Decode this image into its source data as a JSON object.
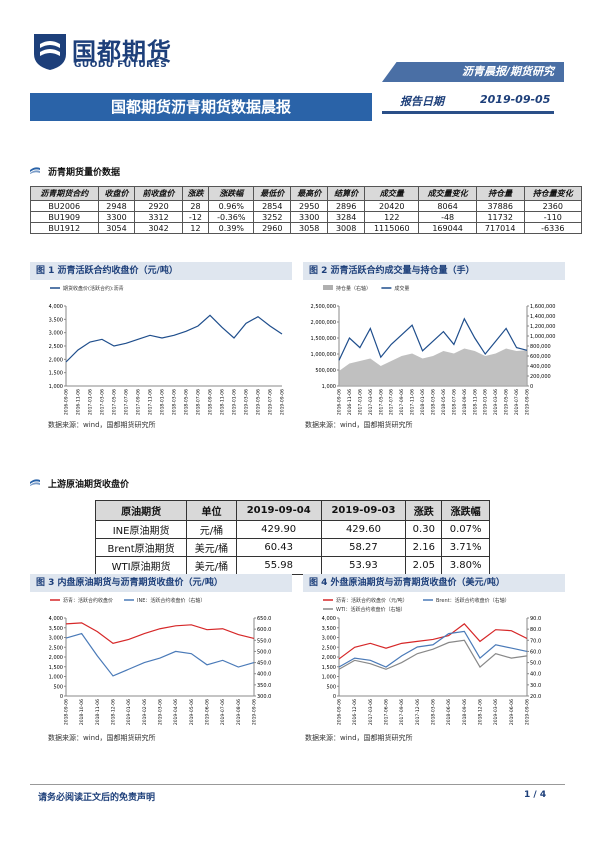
{
  "header": {
    "logo_cn": "国都期货",
    "logo_en": "GUODU FUTURES",
    "tag": "沥青晨报/期货研究",
    "title": "国都期货沥青期货数据晨报",
    "date_label": "报告日期",
    "date": "2019-09-05"
  },
  "section1": "沥青期货量价数据",
  "table1": {
    "columns": [
      "沥青期货合约",
      "收盘价",
      "前收盘价",
      "涨跌",
      "涨跌幅",
      "最低价",
      "最高价",
      "结算价",
      "成交量",
      "成交量变化",
      "持仓量",
      "持仓量变化"
    ],
    "rows": [
      [
        "BU2006",
        "2948",
        "2920",
        "28",
        "0.96%",
        "2854",
        "2950",
        "2896",
        "20420",
        "8064",
        "37886",
        "2360"
      ],
      [
        "BU1909",
        "3300",
        "3312",
        "-12",
        "-0.36%",
        "3252",
        "3300",
        "3284",
        "122",
        "-48",
        "11732",
        "-110"
      ],
      [
        "BU1912",
        "3054",
        "3042",
        "12",
        "0.39%",
        "2960",
        "3058",
        "3008",
        "1115060",
        "169044",
        "717014",
        "-6336"
      ]
    ]
  },
  "figures": [
    {
      "title": "图 1 沥青活跃合约收盘价（元/吨）",
      "source": "数据来源：wind，国都期货研究所",
      "chart": {
        "type": "line",
        "categories": [
          "2016-09-06",
          "2016-11-06",
          "2017-01-06",
          "2017-03-06",
          "2017-05-06",
          "2017-07-06",
          "2017-09-06",
          "2017-11-06",
          "2018-01-06",
          "2018-03-06",
          "2018-05-06",
          "2018-07-06",
          "2018-09-06",
          "2018-11-06",
          "2019-01-06",
          "2019-03-06",
          "2019-05-06",
          "2019-07-06",
          "2019-09-06"
        ],
        "series": [
          {
            "name": "期货收盘价(活跃合约):沥青",
            "color": "#1f4e8c",
            "values": [
              1900,
              2350,
              2650,
              2750,
              2500,
              2600,
              2750,
              2900,
              2800,
              2900,
              3050,
              3250,
              3650,
              3200,
              2800,
              3350,
              3600,
              3250,
              2950
            ]
          }
        ],
        "ylim": [
          1000,
          4000
        ],
        "yticks": [
          {
            "value": 1000,
            "label": "1,000"
          },
          {
            "value": 1500,
            "label": "1,500"
          },
          {
            "value": 2000,
            "label": "2,000"
          },
          {
            "value": 2500,
            "label": "2,500"
          },
          {
            "value": 3000,
            "label": "3,000"
          },
          {
            "value": 3500,
            "label": "3,500"
          },
          {
            "value": 4000,
            "label": "4,000"
          }
        ]
      }
    },
    {
      "title": "图 2 沥青活跃合约成交量与持仓量（手）",
      "source": "数据来源：wind，国都期货研究所",
      "chart": {
        "type": "line",
        "categories": [
          "2016-09-06",
          "2016-11-06",
          "2017-01-06",
          "2017-03-06",
          "2017-05-06",
          "2017-07-06",
          "2017-09-06",
          "2017-11-06",
          "2018-01-06",
          "2018-03-06",
          "2018-05-06",
          "2018-07-06",
          "2018-09-06",
          "2018-11-06",
          "2019-01-06",
          "2019-03-06",
          "2019-05-06",
          "2019-07-06",
          "2019-09-06"
        ],
        "series": [
          {
            "name": "持仓量（右轴）",
            "color": "#b0b0b0",
            "style": "area",
            "axis": "y2",
            "values": [
              300000,
              450000,
              500000,
              550000,
              400000,
              500000,
              600000,
              650000,
              550000,
              600000,
              700000,
              650000,
              750000,
              700000,
              600000,
              650000,
              750000,
              700000,
              717014
            ]
          },
          {
            "name": "成交量",
            "color": "#1f4e8c",
            "values": [
              800000,
              1500000,
              1200000,
              1800000,
              900000,
              1300000,
              1600000,
              1900000,
              1100000,
              1400000,
              1700000,
              1300000,
              2100000,
              1500000,
              1000000,
              1400000,
              1800000,
              1200000,
              1115060
            ]
          }
        ],
        "ylim": [
          1000,
          2500000
        ],
        "yticks": [
          {
            "value": 1000,
            "label": "1,000"
          },
          {
            "value": 500000,
            "label": "500,000"
          },
          {
            "value": 1000000,
            "label": "1,000,000"
          },
          {
            "value": 1500000,
            "label": "1,500,000"
          },
          {
            "value": 2000000,
            "label": "2,000,000"
          },
          {
            "value": 2500000,
            "label": "2,500,000"
          }
        ],
        "y2lim": [
          0,
          1600000
        ],
        "y2ticks": [
          0,
          {
            "value": 200000,
            "label": "200,000"
          },
          {
            "value": 400000,
            "label": "400,000"
          },
          {
            "value": 600000,
            "label": "600,000"
          },
          {
            "value": 800000,
            "label": "800,000"
          },
          {
            "value": 1000000,
            "label": "1,000,000"
          },
          {
            "value": 1200000,
            "label": "1,200,000"
          },
          {
            "value": 1400000,
            "label": "1,400,000"
          },
          {
            "value": 1600000,
            "label": "1,600,000"
          }
        ]
      }
    },
    {
      "title": "图 3 内盘原油期货与沥青期货收盘价（元/吨）",
      "source": "数据来源：wind，国都期货研究所",
      "chart": {
        "type": "line",
        "categories": [
          "2018-09-06",
          "2018-10-06",
          "2018-11-06",
          "2018-12-06",
          "2019-01-06",
          "2019-02-06",
          "2019-03-06",
          "2019-04-06",
          "2019-05-06",
          "2019-06-06",
          "2019-07-06",
          "2019-08-06",
          "2019-09-06"
        ],
        "series": [
          {
            "name": "沥青：活跃合约收盘价",
            "color": "#d62728",
            "values": [
              3700,
              3750,
              3300,
              2700,
              2900,
              3200,
              3450,
              3600,
              3650,
              3400,
              3450,
              3150,
              2950
            ]
          },
          {
            "name": "INE：活跃合约收盘价（右轴）",
            "color": "#4a7ab8",
            "axis": "y2",
            "values": [
              560,
              580,
              480,
              390,
              420,
              450,
              470,
              500,
              490,
              440,
              460,
              430,
              450
            ]
          }
        ],
        "ylim": [
          0,
          4000
        ],
        "yticks": [
          0,
          500,
          {
            "value": 1000,
            "label": "1,000"
          },
          {
            "value": 1500,
            "label": "1,500"
          },
          {
            "value": 2000,
            "label": "2,000"
          },
          {
            "value": 2500,
            "label": "2,500"
          },
          {
            "value": 3000,
            "label": "3,000"
          },
          {
            "value": 3500,
            "label": "3,500"
          },
          {
            "value": 4000,
            "label": "4,000"
          }
        ],
        "y2lim": [
          300,
          650
        ],
        "y2ticks": [
          {
            "value": 300,
            "label": "300.0"
          },
          {
            "value": 350,
            "label": "350.0"
          },
          {
            "value": 400,
            "label": "400.0"
          },
          {
            "value": 450,
            "label": "450.0"
          },
          {
            "value": 500,
            "label": "500.0"
          },
          {
            "value": 550,
            "label": "550.0"
          },
          {
            "value": 600,
            "label": "600.0"
          },
          {
            "value": 650,
            "label": "650.0"
          }
        ]
      }
    },
    {
      "title": "图 4 外盘原油期货与沥青期货收盘价（美元/吨）",
      "source": "数据来源：wind，国都期货研究所",
      "chart": {
        "type": "line",
        "categories": [
          "2016-09-06",
          "2016-12-06",
          "2017-03-06",
          "2017-06-06",
          "2017-09-06",
          "2017-12-06",
          "2018-03-06",
          "2018-06-06",
          "2018-09-06",
          "2018-12-06",
          "2019-03-06",
          "2019-06-06",
          "2019-09-06"
        ],
        "series": [
          {
            "name": "沥青：活跃合约收盘价（元/吨）",
            "color": "#d62728",
            "values": [
              1900,
              2500,
              2700,
              2450,
              2700,
              2800,
              2900,
              3100,
              3700,
              2800,
              3400,
              3350,
              2950
            ]
          },
          {
            "name": "Brent：活跃合约收盘价（右轴）",
            "color": "#4a7ab8",
            "axis": "y2",
            "values": [
              46,
              54,
              52,
              46,
              56,
              64,
              66,
              76,
              78,
              54,
              66,
              63,
              60
            ]
          },
          {
            "name": "WTI：活跃合约收盘价（右轴）",
            "color": "#888888",
            "axis": "y2",
            "values": [
              44,
              52,
              49,
              44,
              50,
              58,
              62,
              68,
              70,
              46,
              58,
              54,
              56
            ]
          }
        ],
        "ylim": [
          0,
          4000
        ],
        "yticks": [
          0,
          500,
          {
            "value": 1000,
            "label": "1,000"
          },
          {
            "value": 1500,
            "label": "1,500"
          },
          {
            "value": 2000,
            "label": "2,000"
          },
          {
            "value": 2500,
            "label": "2,500"
          },
          {
            "value": 3000,
            "label": "3,000"
          },
          {
            "value": 3500,
            "label": "3,500"
          },
          {
            "value": 4000,
            "label": "4,000"
          }
        ],
        "y2lim": [
          20,
          90
        ],
        "y2ticks": [
          {
            "value": 20,
            "label": "20.0"
          },
          {
            "value": 30,
            "label": "30.0"
          },
          {
            "value": 40,
            "label": "40.0"
          },
          {
            "value": 50,
            "label": "50.0"
          },
          {
            "value": 60,
            "label": "60.0"
          },
          {
            "value": 70,
            "label": "70.0"
          },
          {
            "value": 80,
            "label": "80.0"
          },
          {
            "value": 90,
            "label": "90.0"
          }
        ]
      }
    }
  ],
  "section2": "上游原油期货收盘价",
  "table2": {
    "columns": [
      "原油期货",
      "单位",
      "2019-09-04",
      "2019-09-03",
      "涨跌",
      "涨跌幅"
    ],
    "rows": [
      [
        "INE原油期货",
        "元/桶",
        "429.90",
        "429.60",
        "0.30",
        "0.07%"
      ],
      [
        "Brent原油期货",
        "美元/桶",
        "60.43",
        "58.27",
        "2.16",
        "3.71%"
      ],
      [
        "WTI原油期货",
        "美元/桶",
        "55.98",
        "53.93",
        "2.05",
        "3.80%"
      ]
    ]
  },
  "footer": {
    "disclaimer": "请务必阅读正文后的免责声明",
    "page": "1 / 4"
  }
}
